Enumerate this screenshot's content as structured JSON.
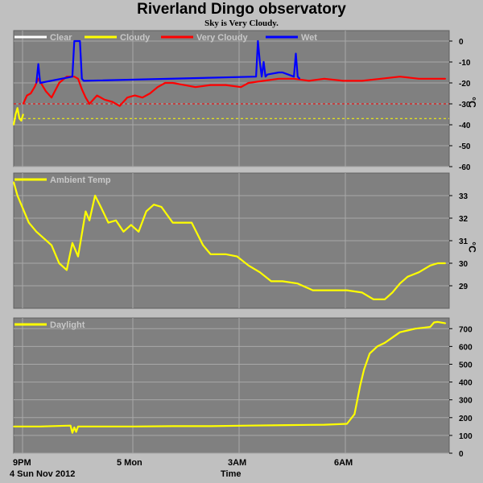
{
  "title": "Riverland Dingo observatory",
  "subtitle": "Sky is Very Cloudy.",
  "x_axis": {
    "ticks": [
      "9PM",
      "5 Mon",
      "3AM",
      "6AM"
    ],
    "date_label": "4 Sun Nov 2012",
    "label": "Time"
  },
  "colors": {
    "plot_bg": "#808080",
    "page_bg": "#c0c0c0",
    "grid": "#a8a8a8",
    "clear": "#ffffff",
    "cloudy": "#ffff00",
    "very_cloudy": "#ff0000",
    "wet": "#0000ff",
    "series": "#ffff00"
  },
  "chart_data": [
    {
      "type": "line",
      "unit": "°C",
      "ylim": [
        -60,
        5
      ],
      "yticks": [
        0,
        -10,
        -20,
        -30,
        -40,
        -50,
        -60
      ],
      "legend": [
        "Clear",
        "Cloudy",
        "Very Cloudy",
        "Wet"
      ],
      "thresholds": [
        {
          "name": "Very Cloudy",
          "value": -30,
          "color": "#ff0000"
        },
        {
          "name": "Cloudy",
          "value": -37,
          "color": "#ffff00"
        }
      ],
      "x_range": [
        20.8,
        8.3
      ],
      "series": [
        {
          "name": "Cloudy",
          "color": "#ffff00",
          "x": [
            20.8,
            20.85,
            20.9,
            20.95,
            21.0,
            21.05
          ],
          "y": [
            -40,
            -35,
            -32,
            -37,
            -38,
            -35
          ]
        },
        {
          "name": "Very Cloudy",
          "color": "#ff0000",
          "x": [
            21.05,
            21.15,
            21.25,
            21.35,
            21.45,
            21.55,
            21.65,
            21.8,
            22.0,
            22.2,
            22.4,
            22.5,
            22.6,
            22.7,
            22.8,
            23.0,
            23.2,
            23.4,
            23.6,
            23.8,
            24.0,
            24.2,
            24.4,
            24.6,
            24.8,
            25.0,
            25.3,
            25.6,
            26.0,
            26.4,
            26.8,
            27.0,
            27.4,
            27.8,
            28.2,
            28.6,
            29.0,
            29.5,
            30.0,
            30.5,
            31.0,
            31.5,
            32.0,
            32.2
          ],
          "y": [
            -30,
            -26,
            -25,
            -22,
            -18,
            -21,
            -24,
            -27,
            -20,
            -17,
            -17,
            -18,
            -23,
            -27,
            -30,
            -26,
            -28,
            -29,
            -31,
            -27,
            -26,
            -27,
            -25,
            -22,
            -20,
            -20,
            -21,
            -22,
            -21,
            -21,
            -22,
            -20,
            -19,
            -18,
            -18,
            -19,
            -18,
            -19,
            -19,
            -18,
            -17,
            -18,
            -18,
            -18
          ]
        },
        {
          "name": "Wet",
          "color": "#0000ff",
          "x": [
            21.4,
            21.45,
            21.5,
            22.35,
            22.4,
            22.45,
            22.5,
            22.55,
            22.6,
            22.65,
            27.2,
            27.25,
            27.3,
            27.35,
            27.4,
            27.45,
            27.5,
            27.8,
            27.85,
            27.9,
            28.2,
            28.25,
            28.3,
            28.35
          ],
          "y": [
            -20,
            -11,
            -20,
            -17,
            0,
            0,
            0,
            0,
            -18,
            -19,
            -17,
            0,
            -10,
            -17,
            -10,
            -17,
            -16,
            -15,
            -15,
            -15,
            -17,
            -6,
            -17,
            -18
          ]
        }
      ]
    },
    {
      "type": "line",
      "unit": "°C",
      "ylim": [
        28,
        34
      ],
      "yticks": [
        29,
        30,
        31,
        32,
        33
      ],
      "legend": [
        "Ambient Temp"
      ],
      "x_range": [
        20.8,
        8.3
      ],
      "series": [
        {
          "name": "Ambient Temp",
          "color": "#ffff00",
          "x": [
            20.8,
            20.9,
            21.0,
            21.2,
            21.4,
            21.6,
            21.8,
            22.0,
            22.2,
            22.35,
            22.5,
            22.7,
            22.8,
            22.95,
            23.1,
            23.3,
            23.5,
            23.7,
            23.9,
            24.1,
            24.3,
            24.5,
            24.7,
            25.0,
            25.2,
            25.5,
            25.8,
            26.0,
            26.2,
            26.4,
            26.7,
            27.0,
            27.3,
            27.6,
            27.9,
            28.3,
            28.7,
            29.0,
            29.3,
            29.6,
            30.0,
            30.3,
            30.6,
            30.8,
            31.0,
            31.2,
            31.5,
            31.8,
            32.0,
            32.2
          ],
          "y": [
            33.6,
            33.0,
            32.6,
            31.8,
            31.4,
            31.1,
            30.8,
            30.0,
            29.7,
            30.9,
            30.3,
            32.3,
            31.9,
            33.0,
            32.5,
            31.8,
            31.9,
            31.4,
            31.7,
            31.4,
            32.3,
            32.6,
            32.5,
            31.8,
            31.8,
            31.8,
            30.8,
            30.4,
            30.4,
            30.4,
            30.3,
            29.9,
            29.6,
            29.2,
            29.2,
            29.1,
            28.8,
            28.8,
            28.8,
            28.8,
            28.7,
            28.4,
            28.4,
            28.7,
            29.1,
            29.4,
            29.6,
            29.9,
            30.0,
            30.0
          ]
        }
      ]
    },
    {
      "type": "line",
      "ylim": [
        0,
        760
      ],
      "yticks": [
        0,
        100,
        200,
        300,
        400,
        500,
        600,
        700
      ],
      "legend": [
        "Daylight"
      ],
      "x_range": [
        20.8,
        8.3
      ],
      "series": [
        {
          "name": "Daylight",
          "color": "#ffff00",
          "x": [
            20.8,
            21.5,
            22.3,
            22.35,
            22.4,
            22.45,
            22.5,
            23.0,
            24.0,
            25.0,
            26.0,
            27.0,
            28.0,
            29.0,
            29.6,
            29.8,
            29.95,
            30.05,
            30.2,
            30.4,
            30.6,
            30.8,
            31.0,
            31.2,
            31.4,
            31.6,
            31.8,
            31.9,
            32.0,
            32.2
          ],
          "y": [
            150,
            150,
            155,
            115,
            145,
            120,
            150,
            150,
            150,
            152,
            152,
            155,
            158,
            160,
            165,
            220,
            380,
            470,
            560,
            600,
            620,
            650,
            680,
            690,
            700,
            705,
            710,
            735,
            738,
            730
          ]
        }
      ]
    }
  ]
}
